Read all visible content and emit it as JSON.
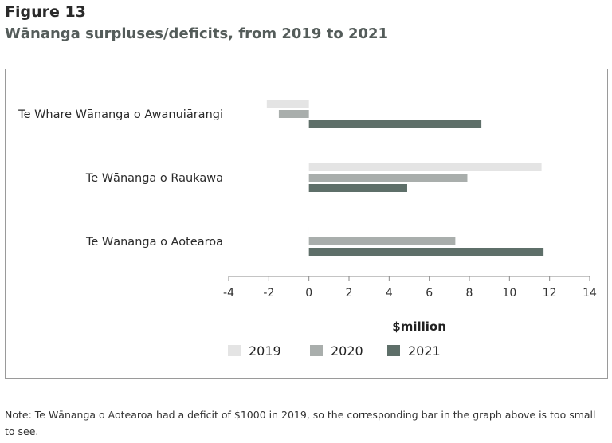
{
  "figure_label": "Figure 13",
  "title": "Wānanga surpluses/deficits, from 2019 to 2021",
  "note": "Note: Te Wānanga o Aotearoa had a deficit of $1000 in 2019, so the corresponding bar in the graph above is too small to see.",
  "chart_data": {
    "type": "bar",
    "orientation": "horizontal",
    "categories": [
      "Te Whare Wānanga o Awanuiārangi",
      "Te Wānanga o Raukawa",
      "Te Wānanga o Aotearoa"
    ],
    "series": [
      {
        "name": "2019",
        "color": "#e4e4e4",
        "values": [
          -2.1,
          11.6,
          -0.001
        ]
      },
      {
        "name": "2020",
        "color": "#a9aeac",
        "values": [
          -1.5,
          7.9,
          7.3
        ]
      },
      {
        "name": "2021",
        "color": "#5e6f69",
        "values": [
          8.6,
          4.9,
          11.7
        ]
      }
    ],
    "xlabel": "$million",
    "xlim": [
      -4,
      14
    ],
    "xticks": [
      "-4",
      "-2",
      "0",
      "2",
      "4",
      "6",
      "8",
      "10",
      "12",
      "14"
    ],
    "grid": false,
    "legend_position": "bottom"
  }
}
